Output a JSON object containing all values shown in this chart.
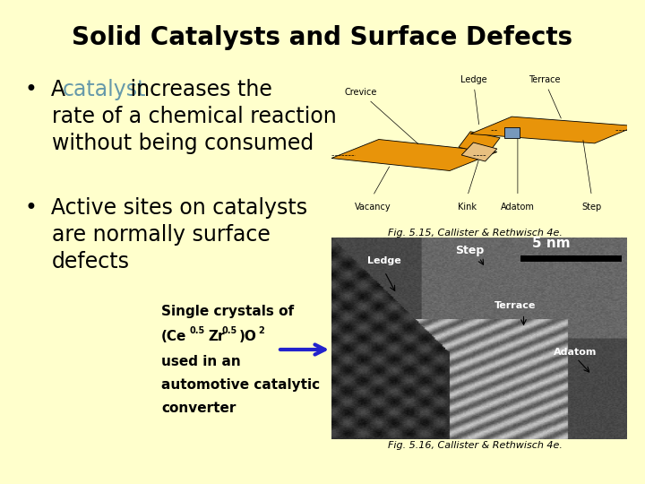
{
  "background_color": "#FFFFCC",
  "title": "Solid Catalysts and Surface Defects",
  "title_fontsize": 20,
  "title_color": "#000000",
  "bullet_fontsize": 17,
  "bullet_color": "#000000",
  "catalyst_color": "#6699AA",
  "fig1_caption": "Fig. 5.15, Callister & Rethwisch 4e.",
  "fig2_caption": "Fig. 5.16, Callister & Rethwisch 4e.",
  "caption_fontsize": 8,
  "sub_fontsize": 11,
  "arrow_color": "#2222CC",
  "diagram_orange": "#E8940A",
  "adatom_blue": "#7799BB"
}
